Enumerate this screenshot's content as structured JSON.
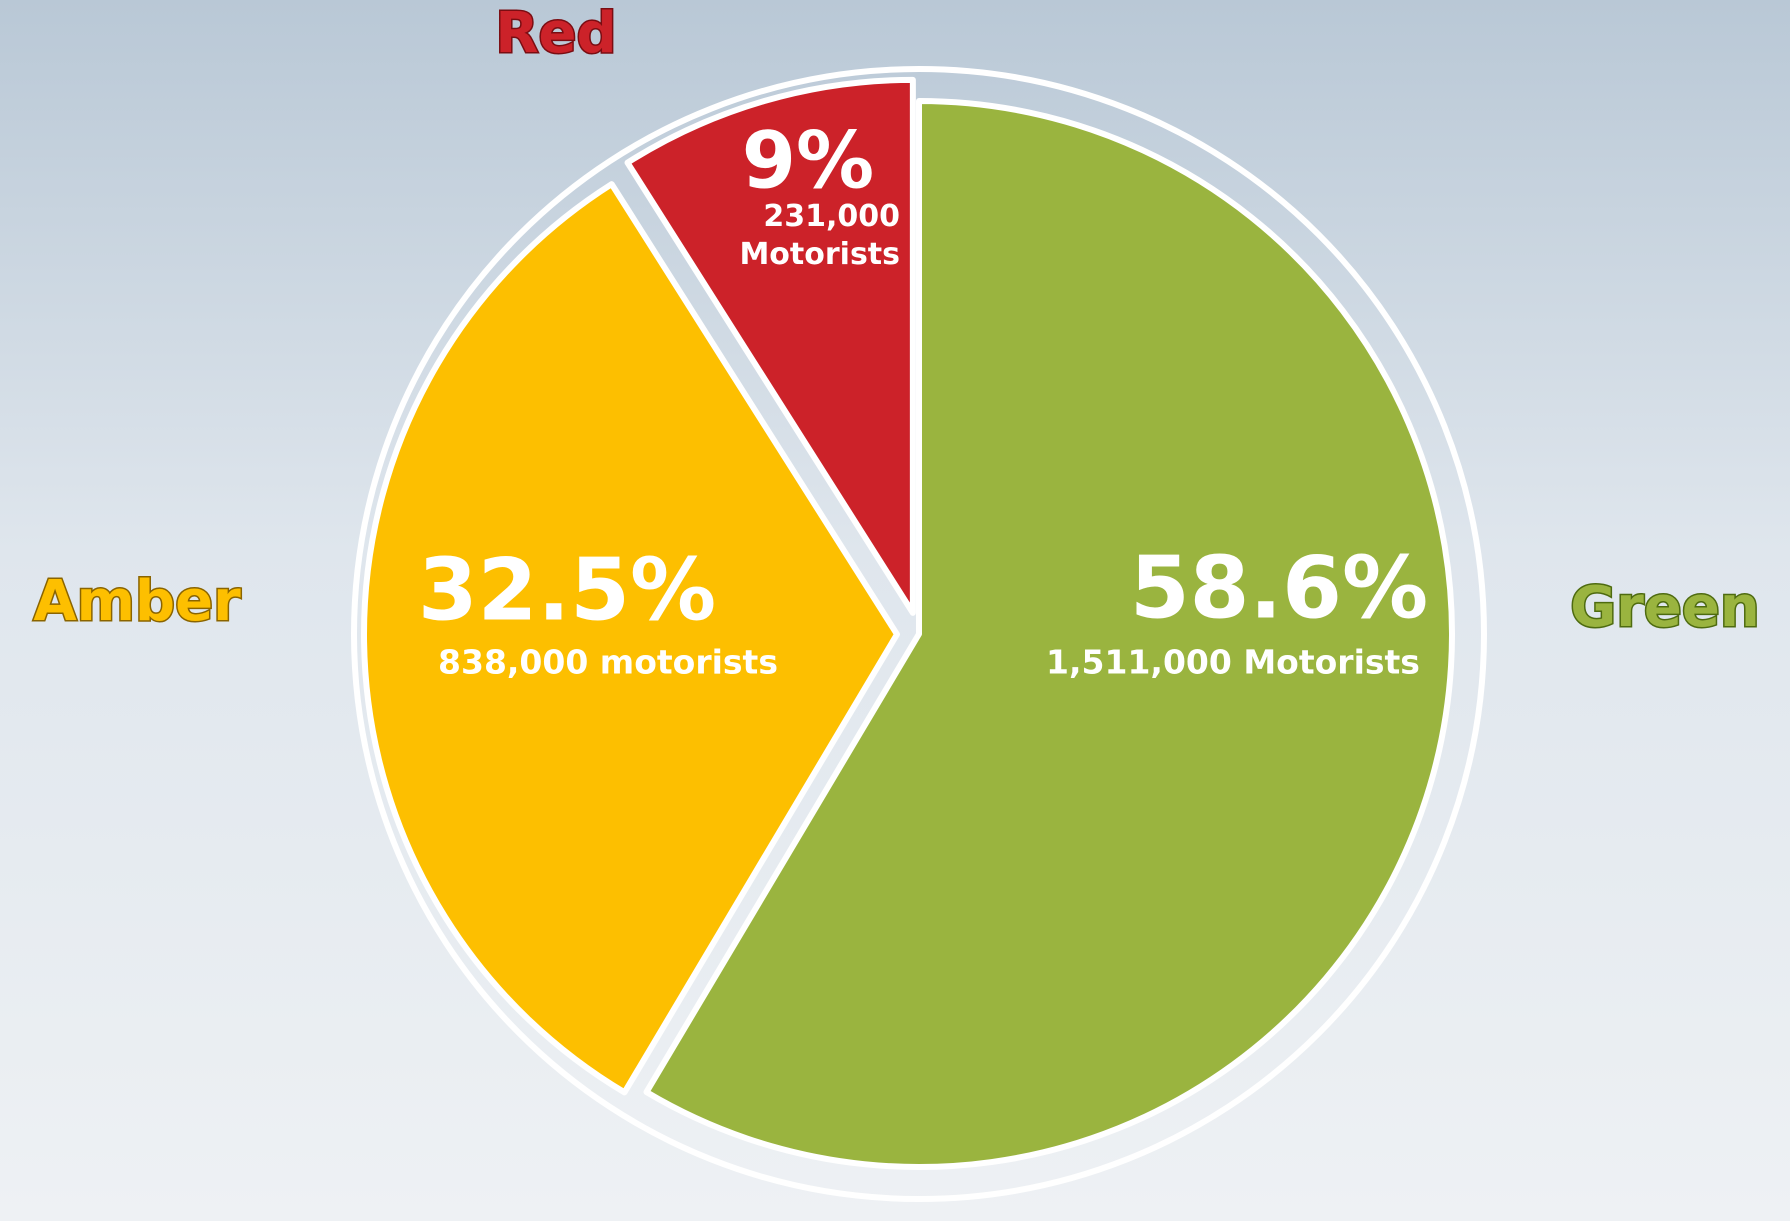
{
  "chart_data": {
    "type": "pie",
    "categories": [
      "Green",
      "Amber",
      "Red"
    ],
    "values": [
      58.6,
      32.5,
      9
    ],
    "value_labels": [
      "58.6%",
      "32.5%",
      "9%"
    ],
    "count_labels": [
      "1,511,000 Motorists",
      "838,000 motorists",
      "231,000 Motorists"
    ],
    "colors": [
      "#9ab43f",
      "#fdbf00",
      "#cc2229"
    ]
  }
}
